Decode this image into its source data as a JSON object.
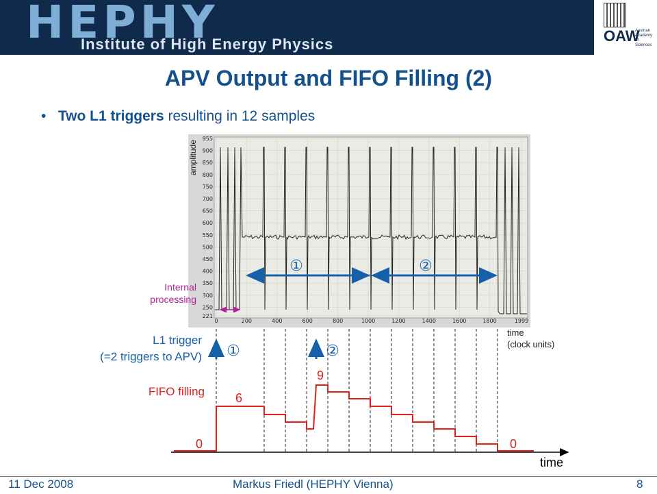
{
  "header": {
    "logo_text": "HEPHY",
    "institute": "Institute of High Energy Physics",
    "org_logo_text": "OAW",
    "org_name": "Austrian Academy of Sciences"
  },
  "slide": {
    "title": "APV Output and FIFO Filling (2)",
    "bullet_bold": "Two L1 triggers",
    "bullet_rest": " resulting in 12 samples"
  },
  "scope": {
    "y_label": "amplitude",
    "y_ticks": [
      "955",
      "900",
      "850",
      "800",
      "750",
      "700",
      "650",
      "600",
      "550",
      "500",
      "450",
      "400",
      "350",
      "300",
      "250",
      "221"
    ],
    "x_ticks": [
      "0",
      "200",
      "400",
      "600",
      "800",
      "1000",
      "1200",
      "1400",
      "1600",
      "1800",
      "1999"
    ],
    "marker_1": "①",
    "marker_2": "②",
    "internal_processing_line1": "Internal",
    "internal_processing_line2": "processing",
    "time_label_line1": "time",
    "time_label_line2": "(clock units)"
  },
  "triggers": {
    "label_line1": "L1 trigger",
    "label_line2": "(=2 triggers to APV)",
    "marker_1": "①",
    "marker_2": "②"
  },
  "fifo": {
    "label": "FIFO filling",
    "value_start": "0",
    "value_first": "6",
    "value_peak": "9",
    "value_end": "0",
    "time_label": "time"
  },
  "footer": {
    "date": "11 Dec 2008",
    "author": "Markus Friedl (HEPHY Vienna)",
    "page": "8"
  },
  "colors": {
    "title_blue": "#14508c",
    "trigger_blue": "#1560a8",
    "fifo_red": "#e0201c",
    "magenta": "#b0209a",
    "banner": "#0f2a4a"
  }
}
